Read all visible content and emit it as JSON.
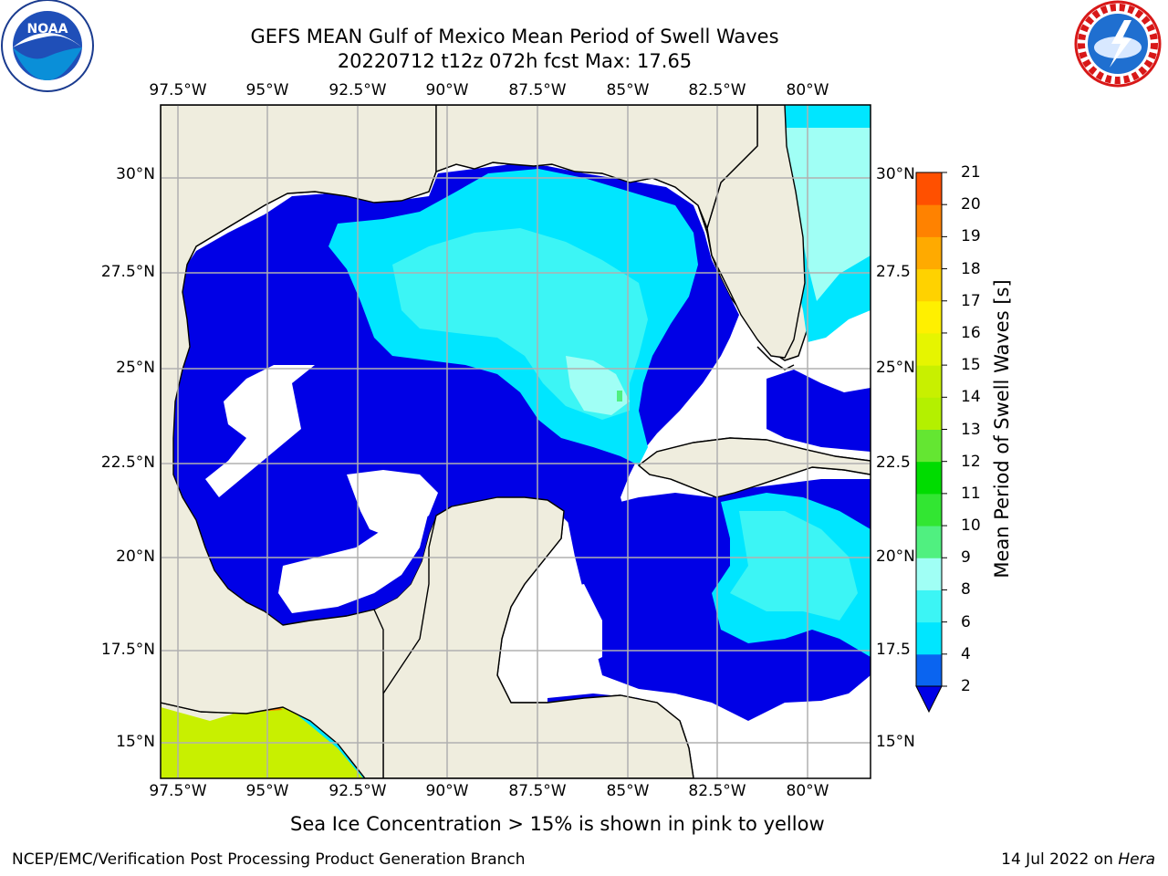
{
  "header": {
    "title_line1": "GEFS MEAN Gulf of Mexico Mean Period of Swell Waves",
    "title_line2": "20220712 t12z 072h fcst   Max: 17.65"
  },
  "logos": {
    "left": {
      "name": "NOAA",
      "ring_text": "NATIONAL OCEANIC AND ATMOSPHERIC ADMINISTRATION · U.S. DEPARTMENT OF COMMERCE"
    },
    "right": {
      "name": "NATIONAL WEATHER SERVICE"
    }
  },
  "map": {
    "lon_labels": [
      "97.5°W",
      "95°W",
      "92.5°W",
      "90°W",
      "87.5°W",
      "85°W",
      "82.5°W",
      "80°W"
    ],
    "lat_labels_left": [
      "30°N",
      "27.5°N",
      "25°N",
      "22.5°N",
      "20°N",
      "17.5°N",
      "15°N"
    ],
    "lat_labels_right": [
      "30°N",
      "27.5",
      "25°N",
      "22.5",
      "20°N",
      "17.5",
      "15°N"
    ],
    "colors": {
      "land": "#efedde",
      "grid": "#b0b0b0",
      "coast": "#000000"
    }
  },
  "colorbar": {
    "label": "Mean Period of Swell Waves [s]",
    "ticks": [
      "2",
      "4",
      "6",
      "8",
      "9",
      "10",
      "11",
      "12",
      "13",
      "14",
      "15",
      "16",
      "17",
      "18",
      "19",
      "20",
      "21"
    ],
    "bands": [
      "#0a64f0",
      "#00e6ff",
      "#3cf5f5",
      "#a0fff5",
      "#50f080",
      "#32e632",
      "#00dc00",
      "#64e632",
      "#b4f000",
      "#c8f000",
      "#e6f500",
      "#fff000",
      "#ffd200",
      "#ffaa00",
      "#ff8200",
      "#ff5000",
      "#ff2800",
      "#ff0000"
    ],
    "extend_color": "#0000e6"
  },
  "footer": {
    "caption": "Sea Ice Concentration > 15% is shown in pink to yellow",
    "left": "NCEP/EMC/Verification Post Processing Product Generation Branch",
    "right_date": "14 Jul 2022 on ",
    "right_host": "Hera"
  }
}
